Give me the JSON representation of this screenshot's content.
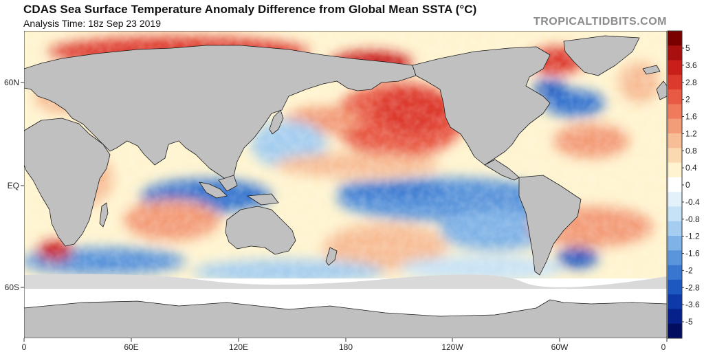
{
  "header": {
    "title": "CDAS Sea Surface Temperature Anomaly Difference from Global Mean SSTA (°C)",
    "subtitle": "Analysis Time: 18z Sep 23 2019",
    "credit": "TROPICALTIDBITS.COM"
  },
  "axes": {
    "latitude_labels": [
      "60N",
      "EQ",
      "60S"
    ],
    "longitude_labels": [
      "0",
      "60E",
      "120E",
      "180",
      "120W",
      "60W",
      "0"
    ]
  },
  "colorbar": {
    "labels": [
      "5",
      "3.6",
      "2.8",
      "2",
      "1.6",
      "1.2",
      "0.8",
      "0.4",
      "0",
      "-0.4",
      "-0.8",
      "-1.2",
      "-1.6",
      "-2",
      "-2.8",
      "-3.6",
      "-5"
    ],
    "colors": [
      "#7a0000",
      "#a80f0f",
      "#c81f1a",
      "#dd3a2e",
      "#e85a44",
      "#ef7a5c",
      "#f39c78",
      "#f7bd95",
      "#fbd9b0",
      "#fff4cf",
      "#ffffff",
      "#e3f1fb",
      "#c6e2f6",
      "#a4cdef",
      "#7fb2e6",
      "#5a94da",
      "#3876cf",
      "#1d57c0",
      "#0d3aa8",
      "#06218a",
      "#020d60"
    ]
  },
  "legend_colors": {
    "land": "#c0c0c0",
    "ice": "#ffffff",
    "coast": "#1a1a1a"
  }
}
